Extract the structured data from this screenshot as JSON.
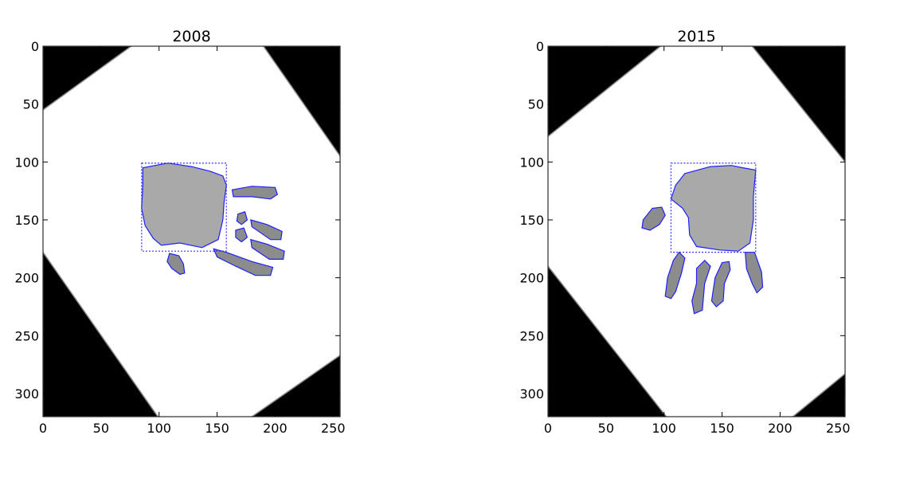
{
  "chart_data": [
    {
      "type": "image",
      "title": "2008",
      "xlim": [
        0,
        256
      ],
      "ylim": [
        320,
        0
      ],
      "xticks": [
        0,
        50,
        100,
        150,
        200,
        250
      ],
      "yticks": [
        0,
        50,
        100,
        150,
        200,
        250,
        300
      ],
      "bounding_box": {
        "x0": 85,
        "y0": 101,
        "x1": 158,
        "y1": 177
      },
      "black_corners": [
        [
          [
            0,
            0
          ],
          [
            76,
            0
          ],
          [
            0,
            55
          ]
        ],
        [
          [
            190,
            0
          ],
          [
            256,
            0
          ],
          [
            256,
            95
          ]
        ],
        [
          [
            0,
            178
          ],
          [
            0,
            320
          ],
          [
            99,
            320
          ]
        ],
        [
          [
            256,
            267
          ],
          [
            256,
            320
          ],
          [
            180,
            320
          ]
        ]
      ],
      "palm_contour": [
        [
          86,
          105
        ],
        [
          102,
          102
        ],
        [
          108,
          101
        ],
        [
          128,
          104
        ],
        [
          144,
          108
        ],
        [
          155,
          112
        ],
        [
          158,
          120
        ],
        [
          156,
          135
        ],
        [
          155,
          150
        ],
        [
          151,
          167
        ],
        [
          137,
          174
        ],
        [
          118,
          170
        ],
        [
          102,
          172
        ],
        [
          95,
          166
        ],
        [
          88,
          155
        ],
        [
          85,
          140
        ],
        [
          86,
          120
        ]
      ],
      "finger_contours": [
        [
          [
            163,
            124
          ],
          [
            180,
            121
          ],
          [
            200,
            122
          ],
          [
            202,
            128
          ],
          [
            196,
            132
          ],
          [
            180,
            130
          ],
          [
            164,
            130
          ]
        ],
        [
          [
            168,
            145
          ],
          [
            174,
            143
          ],
          [
            176,
            150
          ],
          [
            171,
            154
          ],
          [
            167,
            151
          ]
        ],
        [
          [
            166,
            159
          ],
          [
            173,
            157
          ],
          [
            176,
            165
          ],
          [
            171,
            169
          ],
          [
            166,
            165
          ]
        ],
        [
          [
            179,
            150
          ],
          [
            193,
            154
          ],
          [
            206,
            160
          ],
          [
            205,
            167
          ],
          [
            196,
            167
          ],
          [
            180,
            156
          ]
        ],
        [
          [
            179,
            167
          ],
          [
            193,
            171
          ],
          [
            208,
            177
          ],
          [
            207,
            184
          ],
          [
            195,
            184
          ],
          [
            180,
            174
          ]
        ],
        [
          [
            147,
            175
          ],
          [
            158,
            178
          ],
          [
            180,
            186
          ],
          [
            198,
            191
          ],
          [
            196,
            198
          ],
          [
            183,
            198
          ],
          [
            166,
            190
          ],
          [
            150,
            182
          ]
        ],
        [
          [
            109,
            179
          ],
          [
            117,
            181
          ],
          [
            121,
            188
          ],
          [
            122,
            196
          ],
          [
            118,
            197
          ],
          [
            111,
            192
          ],
          [
            107,
            186
          ]
        ]
      ]
    },
    {
      "type": "image",
      "title": "2015",
      "xlim": [
        0,
        256
      ],
      "ylim": [
        320,
        0
      ],
      "xticks": [
        0,
        50,
        100,
        150,
        200,
        250
      ],
      "yticks": [
        0,
        50,
        100,
        150,
        200,
        250,
        300
      ],
      "bounding_box": {
        "x0": 106,
        "y0": 101,
        "x1": 179,
        "y1": 178
      },
      "black_corners": [
        [
          [
            0,
            0
          ],
          [
            97,
            0
          ],
          [
            0,
            78
          ]
        ],
        [
          [
            176,
            0
          ],
          [
            256,
            0
          ],
          [
            256,
            100
          ]
        ],
        [
          [
            0,
            190
          ],
          [
            0,
            320
          ],
          [
            102,
            320
          ]
        ],
        [
          [
            256,
            283
          ],
          [
            256,
            320
          ],
          [
            211,
            320
          ]
        ]
      ],
      "palm_contour": [
        [
          118,
          110
        ],
        [
          140,
          104
        ],
        [
          158,
          103
        ],
        [
          168,
          105
        ],
        [
          179,
          107
        ],
        [
          177,
          130
        ],
        [
          177,
          150
        ],
        [
          174,
          170
        ],
        [
          164,
          177
        ],
        [
          148,
          176
        ],
        [
          128,
          173
        ],
        [
          122,
          163
        ],
        [
          121,
          148
        ],
        [
          116,
          140
        ],
        [
          106,
          132
        ],
        [
          110,
          120
        ]
      ],
      "finger_contours": [
        [
          [
            82,
            150
          ],
          [
            90,
            140
          ],
          [
            98,
            139
          ],
          [
            101,
            146
          ],
          [
            96,
            154
          ],
          [
            88,
            159
          ],
          [
            81,
            157
          ]
        ],
        [
          [
            108,
            185
          ],
          [
            113,
            178
          ],
          [
            118,
            183
          ],
          [
            115,
            196
          ],
          [
            110,
            212
          ],
          [
            106,
            218
          ],
          [
            101,
            216
          ],
          [
            103,
            200
          ]
        ],
        [
          [
            128,
            192
          ],
          [
            135,
            185
          ],
          [
            140,
            190
          ],
          [
            135,
            205
          ],
          [
            133,
            228
          ],
          [
            126,
            231
          ],
          [
            124,
            220
          ],
          [
            128,
            205
          ]
        ],
        [
          [
            150,
            187
          ],
          [
            156,
            186
          ],
          [
            157,
            193
          ],
          [
            152,
            205
          ],
          [
            151,
            220
          ],
          [
            145,
            225
          ],
          [
            141,
            220
          ],
          [
            144,
            200
          ]
        ],
        [
          [
            170,
            178
          ],
          [
            178,
            178
          ],
          [
            184,
            195
          ],
          [
            185,
            208
          ],
          [
            180,
            213
          ],
          [
            176,
            205
          ],
          [
            171,
            192
          ]
        ]
      ]
    }
  ]
}
